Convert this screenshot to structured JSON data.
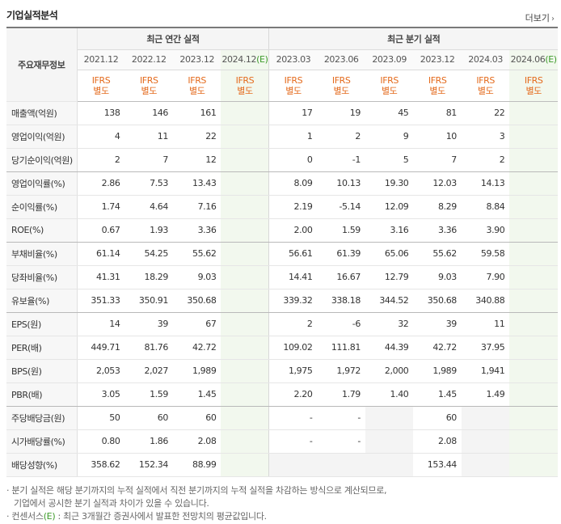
{
  "header": {
    "title": "기업실적분석",
    "more_label": "더보기"
  },
  "table": {
    "corner_label": "주요재무정보",
    "groups": {
      "annual": "최근 연간 실적",
      "quarterly": "최근 분기 실적"
    },
    "periods": [
      {
        "label": "2021.12"
      },
      {
        "label": "2022.12"
      },
      {
        "label": "2023.12"
      },
      {
        "label": "2024.12",
        "est": "(E)"
      },
      {
        "label": "2023.03"
      },
      {
        "label": "2023.06"
      },
      {
        "label": "2023.09"
      },
      {
        "label": "2023.12"
      },
      {
        "label": "2024.03"
      },
      {
        "label": "2024.06",
        "est": "(E)"
      }
    ],
    "standard": [
      "IFRS",
      "별도"
    ],
    "rows": [
      {
        "label": "매출액(억원)",
        "values": [
          "138",
          "146",
          "161",
          "",
          "17",
          "19",
          "45",
          "81",
          "22",
          ""
        ]
      },
      {
        "label": "영업이익(억원)",
        "values": [
          "4",
          "11",
          "22",
          "",
          "1",
          "2",
          "9",
          "10",
          "3",
          ""
        ]
      },
      {
        "label": "당기순이익(억원)",
        "values": [
          "2",
          "7",
          "12",
          "",
          "0",
          "-1",
          "5",
          "7",
          "2",
          ""
        ]
      },
      {
        "label": "영업이익률(%)",
        "values": [
          "2.86",
          "7.53",
          "13.43",
          "",
          "8.09",
          "10.13",
          "19.30",
          "12.03",
          "14.13",
          ""
        ]
      },
      {
        "label": "순이익률(%)",
        "values": [
          "1.74",
          "4.64",
          "7.16",
          "",
          "2.19",
          "-5.14",
          "12.09",
          "8.29",
          "8.84",
          ""
        ]
      },
      {
        "label": "ROE(%)",
        "values": [
          "0.67",
          "1.93",
          "3.36",
          "",
          "2.00",
          "1.59",
          "3.16",
          "3.36",
          "3.90",
          ""
        ]
      },
      {
        "label": "부채비율(%)",
        "values": [
          "61.14",
          "54.25",
          "55.62",
          "",
          "56.61",
          "61.39",
          "65.06",
          "55.62",
          "59.58",
          ""
        ]
      },
      {
        "label": "당좌비율(%)",
        "values": [
          "41.31",
          "18.29",
          "9.03",
          "",
          "14.41",
          "16.67",
          "12.79",
          "9.03",
          "7.90",
          ""
        ]
      },
      {
        "label": "유보율(%)",
        "values": [
          "351.33",
          "350.91",
          "350.68",
          "",
          "339.32",
          "338.18",
          "344.52",
          "350.68",
          "340.88",
          ""
        ]
      },
      {
        "label": "EPS(원)",
        "values": [
          "14",
          "39",
          "67",
          "",
          "2",
          "-6",
          "32",
          "39",
          "11",
          ""
        ]
      },
      {
        "label": "PER(배)",
        "values": [
          "449.71",
          "81.76",
          "42.72",
          "",
          "109.02",
          "111.81",
          "44.39",
          "42.72",
          "37.95",
          ""
        ]
      },
      {
        "label": "BPS(원)",
        "values": [
          "2,053",
          "2,027",
          "1,989",
          "",
          "1,975",
          "1,972",
          "2,000",
          "1,989",
          "1,941",
          ""
        ]
      },
      {
        "label": "PBR(배)",
        "values": [
          "3.05",
          "1.59",
          "1.45",
          "",
          "2.20",
          "1.79",
          "1.40",
          "1.45",
          "1.49",
          ""
        ]
      },
      {
        "label": "주당배당금(원)",
        "values": [
          "50",
          "60",
          "60",
          "",
          "-",
          "-",
          "",
          "60",
          "",
          ""
        ]
      },
      {
        "label": "시가배당률(%)",
        "values": [
          "0.80",
          "1.86",
          "2.08",
          "",
          "-",
          "-",
          "",
          "2.08",
          "",
          ""
        ]
      },
      {
        "label": "배당성향(%)",
        "values": [
          "358.62",
          "152.34",
          "88.99",
          "",
          "",
          "",
          "",
          "153.44",
          "",
          ""
        ]
      }
    ]
  },
  "notes": {
    "line1": "분기 실적은 해당 분기까지의 누적 실적에서 직전 분기까지의 누적 실적을 차감하는 방식으로 계산되므로,",
    "line2": "기업에서 공시한 분기 실적과 차이가 있을 수 있습니다.",
    "line3_prefix": "컨센서스",
    "line3_est": "(E)",
    "line3_rest": ": 최근 3개월간 증권사에서 발표한 전망치의 평균값입니다."
  },
  "colors": {
    "estimate_bg": "#f2f8ee",
    "estimate_text": "#3c9a2a",
    "ifrs_text": "#e46a1c",
    "negative": "#e0302c"
  }
}
